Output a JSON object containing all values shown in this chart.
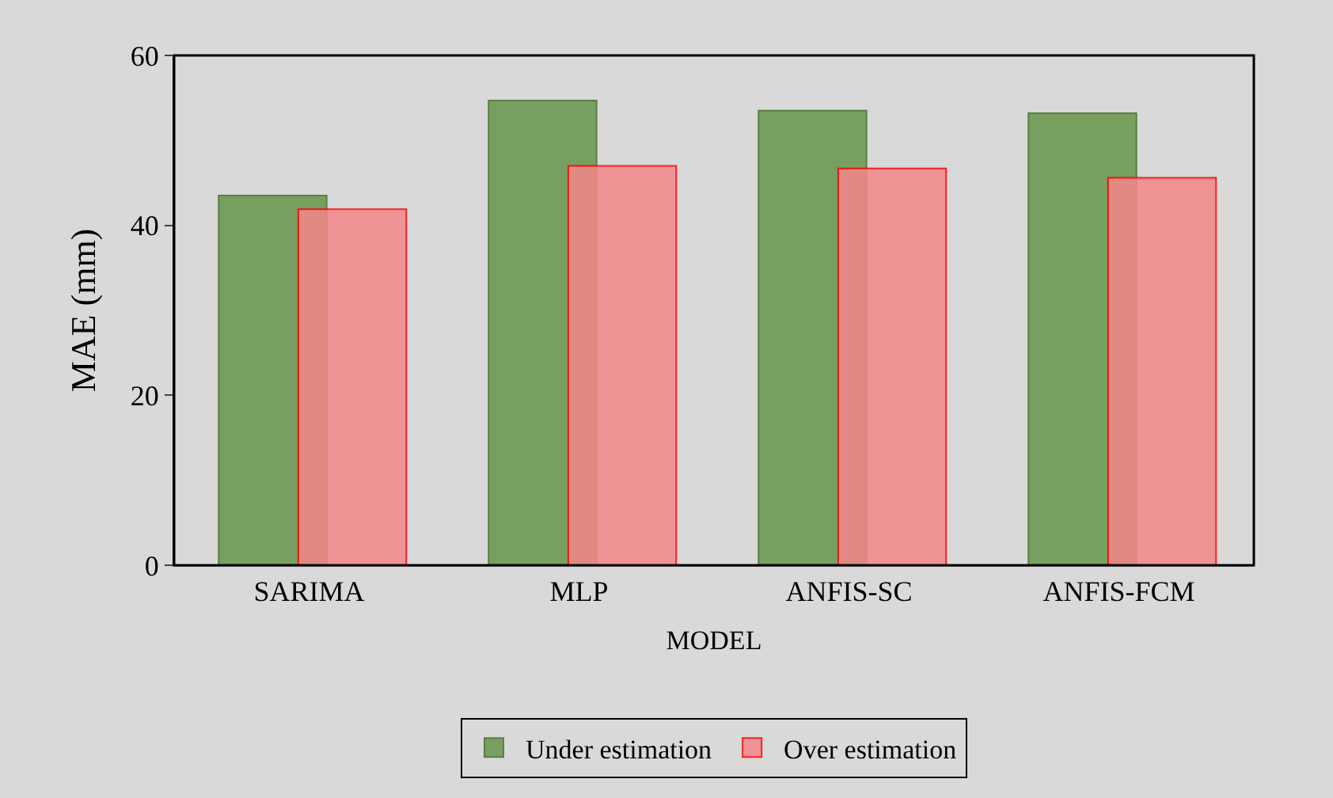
{
  "chart_data": {
    "type": "bar",
    "xlabel": "MODEL",
    "ylabel": "MAE (mm)",
    "categories": [
      "SARIMA",
      "MLP",
      "ANFIS-SC",
      "ANFIS-FCM"
    ],
    "series": [
      {
        "name": "Under estimation",
        "color": "#77a060",
        "values": [
          43.5,
          54.7,
          53.5,
          53.2
        ]
      },
      {
        "name": "Over estimation",
        "color": "#f4878a",
        "values": [
          41.9,
          47.0,
          46.7,
          45.6
        ]
      }
    ],
    "ylim": [
      0,
      60
    ],
    "yticks": [
      0,
      20,
      40,
      60
    ],
    "grid": false,
    "legend": "bottom"
  }
}
